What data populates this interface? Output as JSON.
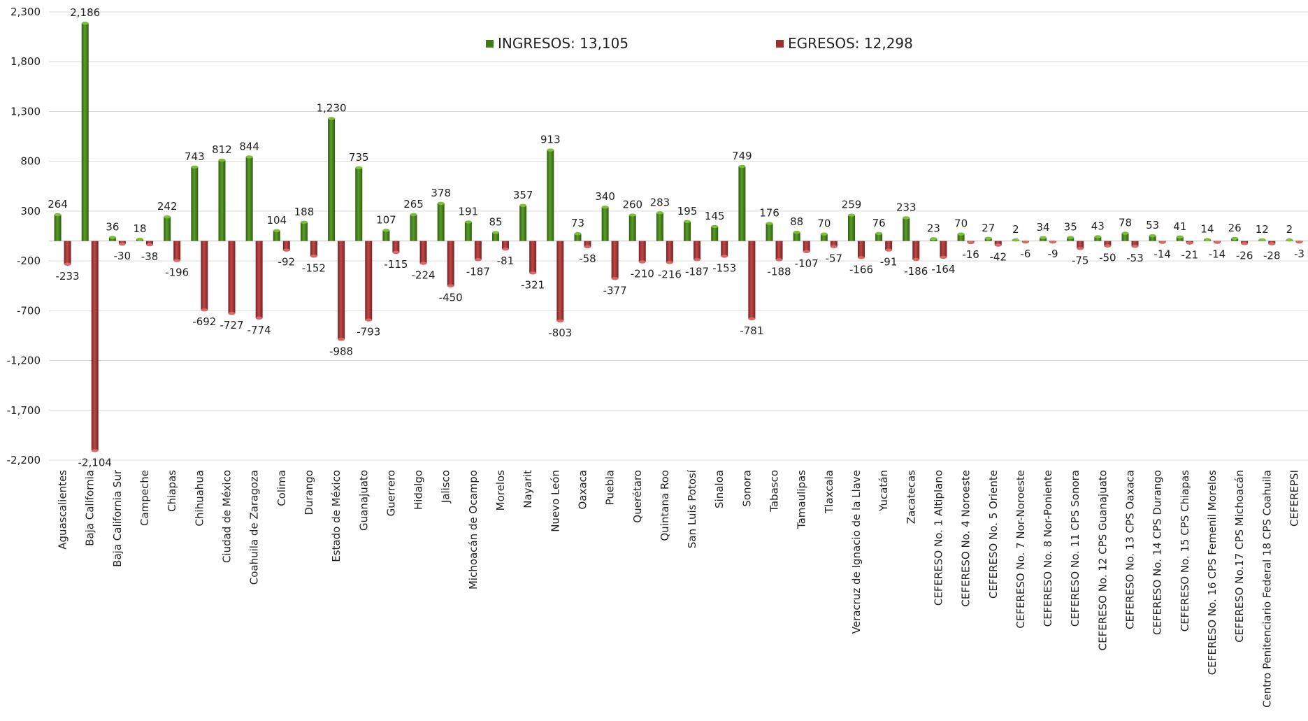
{
  "chart_data": {
    "type": "bar",
    "legend": {
      "ingresos_label": "INGRESOS: 13,105",
      "egresos_label": "EGRESOS: 12,298",
      "placement": "top-center"
    },
    "colors": {
      "ingresos": "#3f7a17",
      "ingresos_light": "#7bbf3a",
      "egresos": "#9e2f2f",
      "egresos_light": "#d86a6a",
      "grid": "#d9d9d9",
      "text": "#222222"
    },
    "ylim": [
      -2200,
      2300
    ],
    "yticks": [
      2300,
      1800,
      1300,
      800,
      300,
      -200,
      -700,
      -1200,
      -1700,
      -2200
    ],
    "ytick_labels": [
      "2,300",
      "1,800",
      "1,300",
      "800",
      "300",
      "-200",
      "-700",
      "-1,200",
      "-1,700",
      "-2,200"
    ],
    "grid": true,
    "categories": [
      "Aguascalientes",
      "Baja California",
      "Baja California Sur",
      "Campeche",
      "Chiapas",
      "Chihuahua",
      "Ciudad de México",
      "Coahuila de Zaragoza",
      "Colima",
      "Durango",
      "Estado de México",
      "Guanajuato",
      "Guerrero",
      "Hidalgo",
      "Jalisco",
      "Michoacán de Ocampo",
      "Morelos",
      "Nayarit",
      "Nuevo León",
      "Oaxaca",
      "Puebla",
      "Querétaro",
      "Quintana Roo",
      "San Luis Potosí",
      "Sinaloa",
      "Sonora",
      "Tabasco",
      "Tamaulipas",
      "Tlaxcala",
      "Veracruz de Ignacio de la Llave",
      "Yucatán",
      "Zacatecas",
      "CEFERESO No. 1 Altiplano",
      "CEFERESO No. 4 Noroeste",
      "CEFERESO No. 5 Oriente",
      "CEFERESO No. 7 Nor-Noroeste",
      "CEFERESO No. 8 Nor-Poniente",
      "CEFERESO No. 11 CPS Sonora",
      "CEFERESO No. 12 CPS Guanajuato",
      "CEFERESO No. 13 CPS Oaxaca",
      "CEFERESO No. 14 CPS Durango",
      "CEFERESO No. 15 CPS Chiapas",
      "CEFERESO No. 16 CPS Femenil Morelos",
      "CEFERESO No.17 CPS Michoacán",
      "Centro Penitenciario Federal 18 CPS Coahuila",
      "CEFEREPSI"
    ],
    "series": [
      {
        "name": "INGRESOS",
        "values": [
          264,
          2186,
          36,
          18,
          242,
          743,
          812,
          844,
          104,
          188,
          1230,
          735,
          107,
          265,
          378,
          191,
          85,
          357,
          913,
          73,
          340,
          260,
          283,
          195,
          145,
          749,
          176,
          88,
          70,
          259,
          76,
          233,
          23,
          70,
          27,
          2,
          34,
          35,
          43,
          78,
          53,
          41,
          14,
          26,
          12,
          2
        ],
        "labels": [
          "264",
          "2,186",
          "36",
          "18",
          "242",
          "743",
          "812",
          "844",
          "104",
          "188",
          "1,230",
          "735",
          "107",
          "265",
          "378",
          "191",
          "85",
          "357",
          "913",
          "73",
          "340",
          "260",
          "283",
          "195",
          "145",
          "749",
          "176",
          "88",
          "70",
          "259",
          "76",
          "233",
          "23",
          "70",
          "27",
          "2",
          "34",
          "35",
          "43",
          "78",
          "53",
          "41",
          "14",
          "26",
          "12",
          "2"
        ]
      },
      {
        "name": "EGRESOS",
        "values": [
          -233,
          -2104,
          -30,
          -38,
          -196,
          -692,
          -727,
          -774,
          -92,
          -152,
          -988,
          -793,
          -115,
          -224,
          -450,
          -187,
          -81,
          -321,
          -803,
          -58,
          -377,
          -210,
          -216,
          -187,
          -153,
          -781,
          -188,
          -107,
          -57,
          -166,
          -91,
          -186,
          -164,
          -16,
          -42,
          -6,
          -9,
          -75,
          -50,
          -53,
          -14,
          -21,
          -14,
          -26,
          -28,
          -3
        ],
        "labels": [
          "-233",
          "-2,104",
          "-30",
          "-38",
          "-196",
          "-692",
          "-727",
          "-774",
          "-92",
          "-152",
          "-988",
          "-793",
          "-115",
          "-224",
          "-450",
          "-187",
          "-81",
          "-321",
          "-803",
          "-58",
          "-377",
          "-210",
          "-216",
          "-187",
          "-153",
          "-781",
          "-188",
          "-107",
          "-57",
          "-166",
          "-91",
          "-186",
          "-164",
          "-16",
          "-42",
          "-6",
          "-9",
          "-75",
          "-50",
          "-53",
          "-14",
          "-21",
          "-14",
          "-26",
          "-28",
          "-3"
        ]
      }
    ]
  }
}
